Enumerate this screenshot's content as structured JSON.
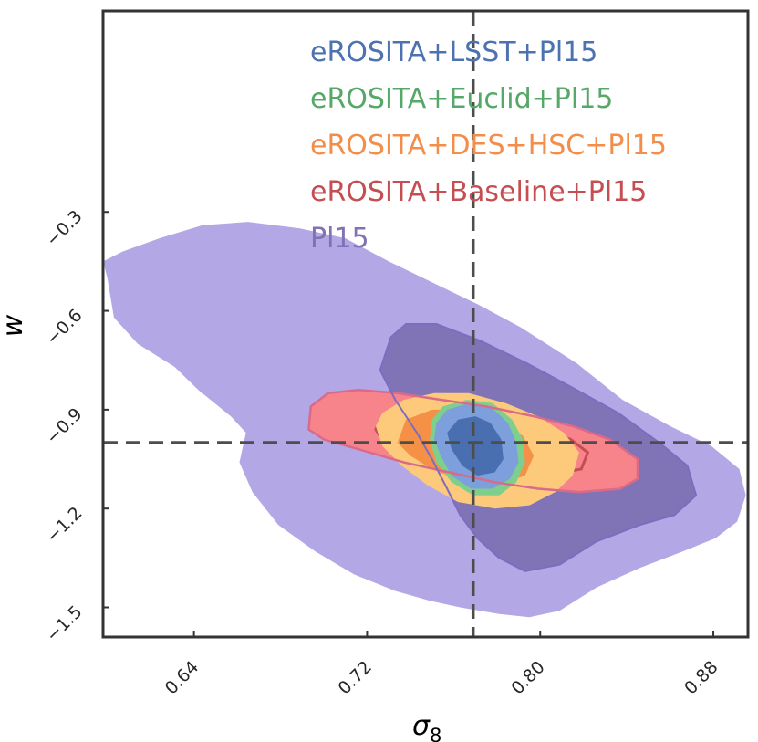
{
  "chart_data": {
    "type": "contour",
    "xlabel": "σ",
    "xlabel_subscript": "8",
    "ylabel": "w",
    "xlim": [
      0.598,
      0.896
    ],
    "ylim": [
      -1.59,
      0.31
    ],
    "xticks": [
      0.64,
      0.72,
      0.8,
      0.88
    ],
    "xtick_labels": [
      "0.64",
      "0.72",
      "0.80",
      "0.88"
    ],
    "yticks": [
      -0.3,
      -0.6,
      -0.9,
      -1.2,
      -1.5
    ],
    "ytick_labels": [
      "−0.3",
      "−0.6",
      "−0.9",
      "−1.2",
      "−1.5"
    ],
    "fiducial": {
      "sigma8": 0.769,
      "w": -1.0
    },
    "colors": {
      "lsst": "#4c72b0",
      "euclid": "#55a868",
      "deshsc": "#f28e4a",
      "baseline": "#c44e52",
      "pl15": "#8172b2",
      "pl15_outer_fill": "#b4a7e5",
      "pl15_inner_fill": "#8074b6",
      "baseline_fill": "#f7848a",
      "deshsc_outer_fill": "#fdc97b",
      "deshsc_inner_fill": "#f49146",
      "euclid_fill": "#7fcf8c",
      "lsst_outer_fill": "#7d9fdc",
      "lsst_inner_fill": "#4a6fb0",
      "fiducial_line": "#4d4d4d"
    },
    "legend": [
      {
        "label": "eROSITA+LSST+Pl15",
        "color": "#4c72b0"
      },
      {
        "label": "eROSITA+Euclid+Pl15",
        "color": "#55a868"
      },
      {
        "label": "eROSITA+DES+HSC+Pl15",
        "color": "#f28e4a"
      },
      {
        "label": "eROSITA+Baseline+Pl15",
        "color": "#c44e52"
      },
      {
        "label": "Pl15",
        "color": "#8172b2"
      }
    ],
    "legend_position": "top-right",
    "series": [
      {
        "name": "Pl15 (95%)",
        "level": "outer",
        "points": [
          [
            0.598,
            -0.45
          ],
          [
            0.6,
            -0.5
          ],
          [
            0.603,
            -0.62
          ],
          [
            0.614,
            -0.7
          ],
          [
            0.631,
            -0.77
          ],
          [
            0.642,
            -0.84
          ],
          [
            0.657,
            -0.92
          ],
          [
            0.664,
            -0.97
          ],
          [
            0.661,
            -1.06
          ],
          [
            0.667,
            -1.15
          ],
          [
            0.679,
            -1.25
          ],
          [
            0.696,
            -1.33
          ],
          [
            0.714,
            -1.4
          ],
          [
            0.733,
            -1.45
          ],
          [
            0.749,
            -1.48
          ],
          [
            0.763,
            -1.5
          ],
          [
            0.781,
            -1.52
          ],
          [
            0.795,
            -1.53
          ],
          [
            0.809,
            -1.51
          ],
          [
            0.826,
            -1.44
          ],
          [
            0.846,
            -1.38
          ],
          [
            0.866,
            -1.33
          ],
          [
            0.881,
            -1.29
          ],
          [
            0.891,
            -1.24
          ],
          [
            0.895,
            -1.16
          ],
          [
            0.892,
            -1.08
          ],
          [
            0.879,
            -1.01
          ],
          [
            0.86,
            -0.95
          ],
          [
            0.838,
            -0.87
          ],
          [
            0.817,
            -0.76
          ],
          [
            0.791,
            -0.65
          ],
          [
            0.771,
            -0.58
          ],
          [
            0.749,
            -0.51
          ],
          [
            0.73,
            -0.45
          ],
          [
            0.71,
            -0.38
          ],
          [
            0.689,
            -0.35
          ],
          [
            0.665,
            -0.33
          ],
          [
            0.644,
            -0.34
          ],
          [
            0.624,
            -0.38
          ],
          [
            0.607,
            -0.42
          ]
        ]
      },
      {
        "name": "Pl15 (68%)",
        "level": "inner",
        "points": [
          [
            0.731,
            -0.68
          ],
          [
            0.726,
            -0.78
          ],
          [
            0.733,
            -0.87
          ],
          [
            0.743,
            -0.97
          ],
          [
            0.75,
            -1.05
          ],
          [
            0.757,
            -1.14
          ],
          [
            0.763,
            -1.22
          ],
          [
            0.771,
            -1.29
          ],
          [
            0.781,
            -1.35
          ],
          [
            0.793,
            -1.39
          ],
          [
            0.809,
            -1.37
          ],
          [
            0.826,
            -1.3
          ],
          [
            0.846,
            -1.25
          ],
          [
            0.862,
            -1.22
          ],
          [
            0.872,
            -1.16
          ],
          [
            0.868,
            -1.07
          ],
          [
            0.855,
            -1.0
          ],
          [
            0.836,
            -0.91
          ],
          [
            0.814,
            -0.83
          ],
          [
            0.794,
            -0.76
          ],
          [
            0.772,
            -0.69
          ],
          [
            0.752,
            -0.64
          ],
          [
            0.738,
            -0.64
          ]
        ]
      },
      {
        "name": "eROSITA+Baseline+Pl15 (95%)",
        "level": "outer",
        "points": [
          [
            0.693,
            -0.96
          ],
          [
            0.694,
            -0.89
          ],
          [
            0.702,
            -0.85
          ],
          [
            0.716,
            -0.84
          ],
          [
            0.734,
            -0.85
          ],
          [
            0.754,
            -0.87
          ],
          [
            0.775,
            -0.89
          ],
          [
            0.797,
            -0.92
          ],
          [
            0.815,
            -0.95
          ],
          [
            0.832,
            -0.99
          ],
          [
            0.845,
            -1.05
          ],
          [
            0.845,
            -1.11
          ],
          [
            0.837,
            -1.14
          ],
          [
            0.818,
            -1.15
          ],
          [
            0.799,
            -1.14
          ],
          [
            0.779,
            -1.12
          ],
          [
            0.758,
            -1.09
          ],
          [
            0.737,
            -1.06
          ],
          [
            0.716,
            -1.02
          ],
          [
            0.7,
            -0.99
          ]
        ]
      },
      {
        "name": "eROSITA+Baseline+Pl15 (68%)",
        "level": "inner",
        "points": [
          [
            0.724,
            -0.96
          ],
          [
            0.727,
            -0.92
          ],
          [
            0.741,
            -0.9
          ],
          [
            0.76,
            -0.91
          ],
          [
            0.781,
            -0.93
          ],
          [
            0.8,
            -0.96
          ],
          [
            0.814,
            -0.99
          ],
          [
            0.822,
            -1.03
          ],
          [
            0.819,
            -1.08
          ],
          [
            0.803,
            -1.1
          ],
          [
            0.78,
            -1.1
          ],
          [
            0.758,
            -1.08
          ],
          [
            0.739,
            -1.04
          ],
          [
            0.728,
            -1.0
          ]
        ]
      },
      {
        "name": "eROSITA+DES+HSC+Pl15 (95%)",
        "level": "outer",
        "points": [
          [
            0.724,
            -0.95
          ],
          [
            0.727,
            -0.91
          ],
          [
            0.737,
            -0.87
          ],
          [
            0.751,
            -0.85
          ],
          [
            0.767,
            -0.85
          ],
          [
            0.784,
            -0.88
          ],
          [
            0.799,
            -0.92
          ],
          [
            0.811,
            -0.97
          ],
          [
            0.818,
            -1.03
          ],
          [
            0.815,
            -1.1
          ],
          [
            0.807,
            -1.15
          ],
          [
            0.795,
            -1.19
          ],
          [
            0.779,
            -1.2
          ],
          [
            0.762,
            -1.18
          ],
          [
            0.748,
            -1.13
          ],
          [
            0.736,
            -1.07
          ],
          [
            0.727,
            -1.01
          ]
        ]
      },
      {
        "name": "eROSITA+DES+HSC+Pl15 (68%)",
        "level": "inner",
        "points": [
          [
            0.734,
            -1.0
          ],
          [
            0.738,
            -0.93
          ],
          [
            0.75,
            -0.9
          ],
          [
            0.765,
            -0.9
          ],
          [
            0.781,
            -0.93
          ],
          [
            0.792,
            -0.98
          ],
          [
            0.797,
            -1.04
          ],
          [
            0.793,
            -1.1
          ],
          [
            0.78,
            -1.13
          ],
          [
            0.765,
            -1.12
          ],
          [
            0.75,
            -1.08
          ],
          [
            0.74,
            -1.04
          ]
        ]
      },
      {
        "name": "eROSITA+Euclid+Pl15 (95%)",
        "level": "outer",
        "points": [
          [
            0.75,
            -0.93
          ],
          [
            0.755,
            -0.89
          ],
          [
            0.766,
            -0.87
          ],
          [
            0.778,
            -0.88
          ],
          [
            0.787,
            -0.93
          ],
          [
            0.792,
            -0.99
          ],
          [
            0.793,
            -1.06
          ],
          [
            0.789,
            -1.12
          ],
          [
            0.781,
            -1.16
          ],
          [
            0.769,
            -1.16
          ],
          [
            0.759,
            -1.12
          ],
          [
            0.752,
            -1.06
          ],
          [
            0.749,
            -0.99
          ]
        ]
      },
      {
        "name": "eROSITA+LSST+Pl15 (95%)",
        "level": "outer",
        "points": [
          [
            0.752,
            -0.94
          ],
          [
            0.757,
            -0.9
          ],
          [
            0.767,
            -0.88
          ],
          [
            0.777,
            -0.89
          ],
          [
            0.785,
            -0.94
          ],
          [
            0.789,
            -1.0
          ],
          [
            0.79,
            -1.06
          ],
          [
            0.786,
            -1.11
          ],
          [
            0.778,
            -1.14
          ],
          [
            0.768,
            -1.14
          ],
          [
            0.759,
            -1.1
          ],
          [
            0.754,
            -1.04
          ],
          [
            0.751,
            -0.99
          ]
        ]
      },
      {
        "name": "eROSITA+LSST+Pl15 (68%)",
        "level": "inner",
        "points": [
          [
            0.757,
            -0.97
          ],
          [
            0.762,
            -0.93
          ],
          [
            0.77,
            -0.92
          ],
          [
            0.777,
            -0.94
          ],
          [
            0.782,
            -0.99
          ],
          [
            0.783,
            -1.05
          ],
          [
            0.779,
            -1.09
          ],
          [
            0.771,
            -1.1
          ],
          [
            0.764,
            -1.07
          ],
          [
            0.759,
            -1.02
          ]
        ]
      }
    ]
  }
}
